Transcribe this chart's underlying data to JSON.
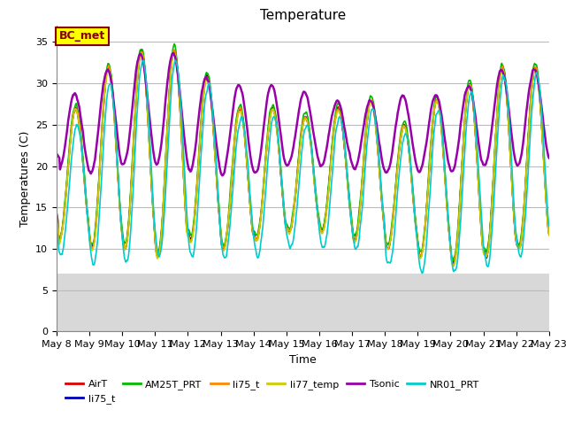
{
  "title": "Temperature",
  "xlabel": "Time",
  "ylabel": "Temperatures (C)",
  "annotation": "BC_met",
  "ylim": [
    0,
    37
  ],
  "yticks": [
    0,
    5,
    10,
    15,
    20,
    25,
    30,
    35
  ],
  "gray_band_below": 7,
  "series_colors": {
    "AirT": "#dd0000",
    "li75_t_b": "#0000bb",
    "AM25T_PRT": "#00bb00",
    "li75_t": "#ff8800",
    "li77_temp": "#cccc00",
    "Tsonic": "#9900aa",
    "NR01_PRT": "#00cccc"
  },
  "legend_entries": [
    {
      "label": "AirT",
      "color": "#dd0000"
    },
    {
      "label": "li75_t",
      "color": "#0000bb"
    },
    {
      "label": "AM25T_PRT",
      "color": "#00bb00"
    },
    {
      "label": "li75_t",
      "color": "#ff8800"
    },
    {
      "label": "li77_temp",
      "color": "#cccc00"
    },
    {
      "label": "Tsonic",
      "color": "#9900aa"
    },
    {
      "label": "NR01_PRT",
      "color": "#00cccc"
    }
  ],
  "background_color": "#ffffff",
  "gray_color": "#d8d8d8",
  "grid_color": "#bbbbbb",
  "annotation_text_color": "#880000",
  "annotation_bg": "#ffff00",
  "annotation_border": "#880000",
  "title_fontsize": 11,
  "axis_fontsize": 9,
  "tick_fontsize": 8,
  "legend_fontsize": 8
}
